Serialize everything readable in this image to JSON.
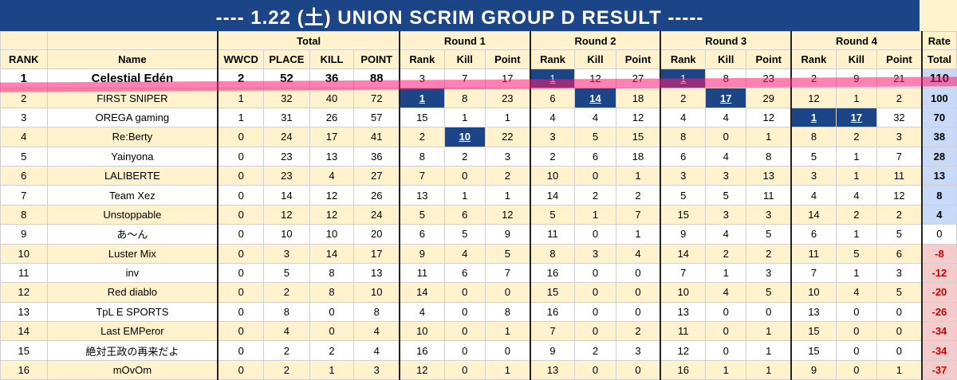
{
  "title": "---- 1.22 (土) UNION SCRIM GROUP D RESULT -----",
  "header": {
    "total": "Total",
    "rounds": [
      "Round 1",
      "Round 2",
      "Round 3",
      "Round 4"
    ],
    "rate": "Rate",
    "rank": "RANK",
    "name": "Name",
    "wwcd": "WWCD",
    "place": "PLACE",
    "kill": "KILL",
    "point": "POINT",
    "r_rank": "Rank",
    "r_kill": "Kill",
    "r_point": "Point",
    "rate_total": "Total"
  },
  "colors": {
    "banner": "#1c4587",
    "best": "#1c4587",
    "row_alt": "#fff2cc",
    "rate_pos": "#c9daf8",
    "rate_neg": "#f4cccc",
    "highlight": "#ff1a75"
  },
  "rows": [
    {
      "rank": "1",
      "name": "Celestial Edén",
      "wwcd": "2",
      "place": "52",
      "kill": "36",
      "point": "88",
      "rounds": [
        [
          "3",
          "7",
          "17"
        ],
        [
          "1",
          "12",
          "27"
        ],
        [
          "1",
          "8",
          "23"
        ],
        [
          "2",
          "9",
          "21"
        ]
      ],
      "rate": "110"
    },
    {
      "rank": "2",
      "name": "FIRST SNIPER",
      "wwcd": "1",
      "place": "32",
      "kill": "40",
      "point": "72",
      "rounds": [
        [
          "1",
          "8",
          "23"
        ],
        [
          "6",
          "14",
          "18"
        ],
        [
          "2",
          "17",
          "29"
        ],
        [
          "12",
          "1",
          "2"
        ]
      ],
      "rate": "100"
    },
    {
      "rank": "3",
      "name": "OREGA gaming",
      "wwcd": "1",
      "place": "31",
      "kill": "26",
      "point": "57",
      "rounds": [
        [
          "15",
          "1",
          "1"
        ],
        [
          "4",
          "4",
          "12"
        ],
        [
          "4",
          "4",
          "12"
        ],
        [
          "1",
          "17",
          "32"
        ]
      ],
      "rate": "70"
    },
    {
      "rank": "4",
      "name": "Re:Berty",
      "wwcd": "0",
      "place": "24",
      "kill": "17",
      "point": "41",
      "rounds": [
        [
          "2",
          "10",
          "22"
        ],
        [
          "3",
          "5",
          "15"
        ],
        [
          "8",
          "0",
          "1"
        ],
        [
          "8",
          "2",
          "3"
        ]
      ],
      "rate": "38"
    },
    {
      "rank": "5",
      "name": "Yainyona",
      "wwcd": "0",
      "place": "23",
      "kill": "13",
      "point": "36",
      "rounds": [
        [
          "8",
          "2",
          "3"
        ],
        [
          "2",
          "6",
          "18"
        ],
        [
          "6",
          "4",
          "8"
        ],
        [
          "5",
          "1",
          "7"
        ]
      ],
      "rate": "28"
    },
    {
      "rank": "6",
      "name": "LALIBERTE",
      "wwcd": "0",
      "place": "23",
      "kill": "4",
      "point": "27",
      "rounds": [
        [
          "7",
          "0",
          "2"
        ],
        [
          "10",
          "0",
          "1"
        ],
        [
          "3",
          "3",
          "13"
        ],
        [
          "3",
          "1",
          "11"
        ]
      ],
      "rate": "13"
    },
    {
      "rank": "7",
      "name": "Team Xez",
      "wwcd": "0",
      "place": "14",
      "kill": "12",
      "point": "26",
      "rounds": [
        [
          "13",
          "1",
          "1"
        ],
        [
          "14",
          "2",
          "2"
        ],
        [
          "5",
          "5",
          "11"
        ],
        [
          "4",
          "4",
          "12"
        ]
      ],
      "rate": "8"
    },
    {
      "rank": "8",
      "name": "Unstoppable",
      "wwcd": "0",
      "place": "12",
      "kill": "12",
      "point": "24",
      "rounds": [
        [
          "5",
          "6",
          "12"
        ],
        [
          "5",
          "1",
          "7"
        ],
        [
          "15",
          "3",
          "3"
        ],
        [
          "14",
          "2",
          "2"
        ]
      ],
      "rate": "4"
    },
    {
      "rank": "9",
      "name": "あ〜ん",
      "wwcd": "0",
      "place": "10",
      "kill": "10",
      "point": "20",
      "rounds": [
        [
          "6",
          "5",
          "9"
        ],
        [
          "11",
          "0",
          "1"
        ],
        [
          "9",
          "4",
          "5"
        ],
        [
          "6",
          "1",
          "5"
        ]
      ],
      "rate": "0"
    },
    {
      "rank": "10",
      "name": "Luster Mix",
      "wwcd": "0",
      "place": "3",
      "kill": "14",
      "point": "17",
      "rounds": [
        [
          "9",
          "4",
          "5"
        ],
        [
          "8",
          "3",
          "4"
        ],
        [
          "14",
          "2",
          "2"
        ],
        [
          "11",
          "5",
          "6"
        ]
      ],
      "rate": "-8"
    },
    {
      "rank": "11",
      "name": "inv",
      "wwcd": "0",
      "place": "5",
      "kill": "8",
      "point": "13",
      "rounds": [
        [
          "11",
          "6",
          "7"
        ],
        [
          "16",
          "0",
          "0"
        ],
        [
          "7",
          "1",
          "3"
        ],
        [
          "7",
          "1",
          "3"
        ]
      ],
      "rate": "-12"
    },
    {
      "rank": "12",
      "name": "Red diablo",
      "wwcd": "0",
      "place": "2",
      "kill": "8",
      "point": "10",
      "rounds": [
        [
          "14",
          "0",
          "0"
        ],
        [
          "15",
          "0",
          "0"
        ],
        [
          "10",
          "4",
          "5"
        ],
        [
          "10",
          "4",
          "5"
        ]
      ],
      "rate": "-20"
    },
    {
      "rank": "13",
      "name": "TpL E SPORTS",
      "wwcd": "0",
      "place": "8",
      "kill": "0",
      "point": "8",
      "rounds": [
        [
          "4",
          "0",
          "8"
        ],
        [
          "16",
          "0",
          "0"
        ],
        [
          "13",
          "0",
          "0"
        ],
        [
          "13",
          "0",
          "0"
        ]
      ],
      "rate": "-26"
    },
    {
      "rank": "14",
      "name": "Last EMPeror",
      "wwcd": "0",
      "place": "4",
      "kill": "0",
      "point": "4",
      "rounds": [
        [
          "10",
          "0",
          "1"
        ],
        [
          "7",
          "0",
          "2"
        ],
        [
          "11",
          "0",
          "1"
        ],
        [
          "15",
          "0",
          "0"
        ]
      ],
      "rate": "-34"
    },
    {
      "rank": "15",
      "name": "絶対王政の再来だよ",
      "wwcd": "0",
      "place": "2",
      "kill": "2",
      "point": "4",
      "rounds": [
        [
          "16",
          "0",
          "0"
        ],
        [
          "9",
          "2",
          "3"
        ],
        [
          "12",
          "0",
          "1"
        ],
        [
          "15",
          "0",
          "0"
        ]
      ],
      "rate": "-34"
    },
    {
      "rank": "16",
      "name": "mOvOm",
      "wwcd": "0",
      "place": "2",
      "kill": "1",
      "point": "3",
      "rounds": [
        [
          "12",
          "0",
          "1"
        ],
        [
          "13",
          "0",
          "0"
        ],
        [
          "16",
          "1",
          "1"
        ],
        [
          "9",
          "0",
          "1"
        ]
      ],
      "rate": "-37"
    }
  ],
  "best_cells": [
    [
      0,
      1,
      0
    ],
    [
      0,
      2,
      0
    ],
    [
      1,
      0,
      0
    ],
    [
      1,
      1,
      1
    ],
    [
      1,
      2,
      1
    ],
    [
      2,
      3,
      0
    ],
    [
      2,
      3,
      1
    ],
    [
      3,
      0,
      1
    ]
  ]
}
